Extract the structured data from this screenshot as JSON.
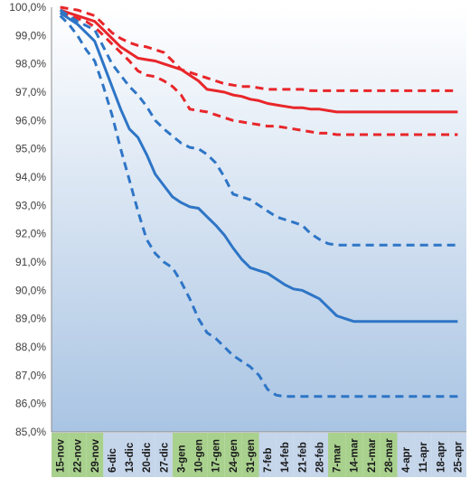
{
  "chart_data": {
    "type": "line",
    "title": "",
    "xlabel": "",
    "ylabel": "",
    "ylim": [
      85.0,
      100.0
    ],
    "y_tick_step": 1.0,
    "y_tick_labels": [
      "85,0%",
      "86,0%",
      "87,0%",
      "88,0%",
      "89,0%",
      "90,0%",
      "91,0%",
      "92,0%",
      "93,0%",
      "94,0%",
      "95,0%",
      "96,0%",
      "97,0%",
      "98,0%",
      "99,0%",
      "100,0%"
    ],
    "grid": false,
    "legend": "none",
    "x_labels": [
      "15-nov",
      "22-nov",
      "29-nov",
      "6-dic",
      "13-dic",
      "20-dic",
      "27-dic",
      "3-gen",
      "10-gen",
      "17-gen",
      "24-gen",
      "31-gen",
      "7-feb",
      "14-feb",
      "21-feb",
      "28-feb",
      "7-mar",
      "14-mar",
      "21-mar",
      "28-mar",
      "4-apr",
      "11-apr",
      "18-apr",
      "25-apr"
    ],
    "x_label_highlight": [
      true,
      true,
      true,
      false,
      false,
      false,
      false,
      true,
      true,
      true,
      true,
      true,
      false,
      false,
      false,
      false,
      true,
      true,
      true,
      true,
      false,
      false,
      false,
      false
    ],
    "colors": {
      "red": "#e8262a",
      "blue": "#2e75c6",
      "plot_bg_top": "#ffffff",
      "plot_bg_bottom": "#a9c4e3",
      "label_highlight": "#a9d18e",
      "label_normal": "#c5d5ea"
    },
    "x_points": [
      "15-nov",
      "18-nov",
      "22-nov",
      "25-nov",
      "29-nov",
      "2-dic",
      "6-dic",
      "9-dic",
      "13-dic",
      "16-dic",
      "20-dic",
      "23-dic",
      "27-dic",
      "30-dic",
      "3-gen",
      "6-gen",
      "10-gen",
      "13-gen",
      "17-gen",
      "20-gen",
      "24-gen",
      "27-gen",
      "31-gen",
      "3-feb",
      "7-feb",
      "10-feb",
      "14-feb",
      "17-feb",
      "21-feb",
      "24-feb",
      "28-feb",
      "3-mar",
      "7-mar",
      "10-mar",
      "14-mar",
      "17-mar",
      "21-mar",
      "24-mar",
      "28-mar",
      "31-mar",
      "4-apr",
      "7-apr",
      "11-apr",
      "14-apr",
      "18-apr",
      "21-apr",
      "25-apr"
    ],
    "series": [
      {
        "color": "red",
        "dash": false,
        "values": [
          99.9,
          99.8,
          99.7,
          99.6,
          99.5,
          99.2,
          98.9,
          98.6,
          98.4,
          98.2,
          98.15,
          98.1,
          98.0,
          97.9,
          97.8,
          97.6,
          97.4,
          97.1,
          97.05,
          97.0,
          96.9,
          96.85,
          96.75,
          96.7,
          96.6,
          96.55,
          96.5,
          96.45,
          96.45,
          96.4,
          96.4,
          96.35,
          96.3,
          96.3,
          96.3,
          96.3,
          96.3,
          96.3,
          96.3,
          96.3,
          96.3,
          96.3,
          96.3,
          96.3,
          96.3,
          96.3,
          96.3
        ]
      },
      {
        "color": "red",
        "dash": true,
        "values": [
          100.0,
          99.95,
          99.9,
          99.8,
          99.7,
          99.4,
          99.1,
          98.9,
          98.75,
          98.65,
          98.6,
          98.5,
          98.4,
          98.1,
          97.8,
          97.7,
          97.6,
          97.5,
          97.4,
          97.3,
          97.25,
          97.2,
          97.2,
          97.15,
          97.1,
          97.1,
          97.1,
          97.1,
          97.1,
          97.05,
          97.05,
          97.05,
          97.05,
          97.05,
          97.05,
          97.05,
          97.05,
          97.05,
          97.05,
          97.05,
          97.05,
          97.05,
          97.05,
          97.05,
          97.05,
          97.05,
          97.05
        ]
      },
      {
        "color": "red",
        "dash": true,
        "values": [
          99.8,
          99.7,
          99.6,
          99.5,
          99.3,
          99.0,
          98.7,
          98.4,
          98.1,
          97.75,
          97.6,
          97.55,
          97.4,
          97.2,
          96.9,
          96.4,
          96.35,
          96.3,
          96.2,
          96.1,
          96.0,
          95.95,
          95.9,
          95.85,
          95.8,
          95.8,
          95.75,
          95.7,
          95.65,
          95.6,
          95.55,
          95.55,
          95.5,
          95.5,
          95.5,
          95.5,
          95.5,
          95.5,
          95.5,
          95.5,
          95.5,
          95.5,
          95.5,
          95.5,
          95.5,
          95.5,
          95.5
        ]
      },
      {
        "color": "blue",
        "dash": false,
        "values": [
          99.8,
          99.6,
          99.4,
          99.1,
          98.8,
          98.0,
          97.2,
          96.4,
          95.7,
          95.4,
          94.8,
          94.1,
          93.7,
          93.3,
          93.1,
          92.95,
          92.9,
          92.6,
          92.3,
          91.95,
          91.5,
          91.1,
          90.8,
          90.7,
          90.6,
          90.4,
          90.2,
          90.05,
          90.0,
          89.85,
          89.7,
          89.4,
          89.1,
          89.0,
          88.9,
          88.9,
          88.9,
          88.9,
          88.9,
          88.9,
          88.9,
          88.9,
          88.9,
          88.9,
          88.9,
          88.9,
          88.9
        ]
      },
      {
        "color": "blue",
        "dash": true,
        "values": [
          99.9,
          99.7,
          99.5,
          99.35,
          99.2,
          98.6,
          98.0,
          97.6,
          97.2,
          96.9,
          96.5,
          96.0,
          95.7,
          95.45,
          95.2,
          95.05,
          95.0,
          94.8,
          94.5,
          94.0,
          93.4,
          93.3,
          93.2,
          93.0,
          92.8,
          92.6,
          92.5,
          92.4,
          92.3,
          92.0,
          91.8,
          91.65,
          91.6,
          91.6,
          91.6,
          91.6,
          91.6,
          91.6,
          91.6,
          91.6,
          91.6,
          91.6,
          91.6,
          91.6,
          91.6,
          91.6,
          91.6
        ]
      },
      {
        "color": "blue",
        "dash": true,
        "values": [
          99.7,
          99.4,
          99.0,
          98.5,
          98.1,
          97.2,
          96.2,
          95.0,
          93.9,
          92.8,
          91.8,
          91.3,
          91.0,
          90.8,
          90.3,
          89.7,
          89.0,
          88.5,
          88.3,
          88.0,
          87.7,
          87.5,
          87.3,
          87.0,
          86.5,
          86.3,
          86.25,
          86.25,
          86.25,
          86.25,
          86.25,
          86.25,
          86.25,
          86.25,
          86.25,
          86.25,
          86.25,
          86.25,
          86.25,
          86.25,
          86.25,
          86.25,
          86.25,
          86.25,
          86.25,
          86.25,
          86.25
        ]
      }
    ]
  }
}
